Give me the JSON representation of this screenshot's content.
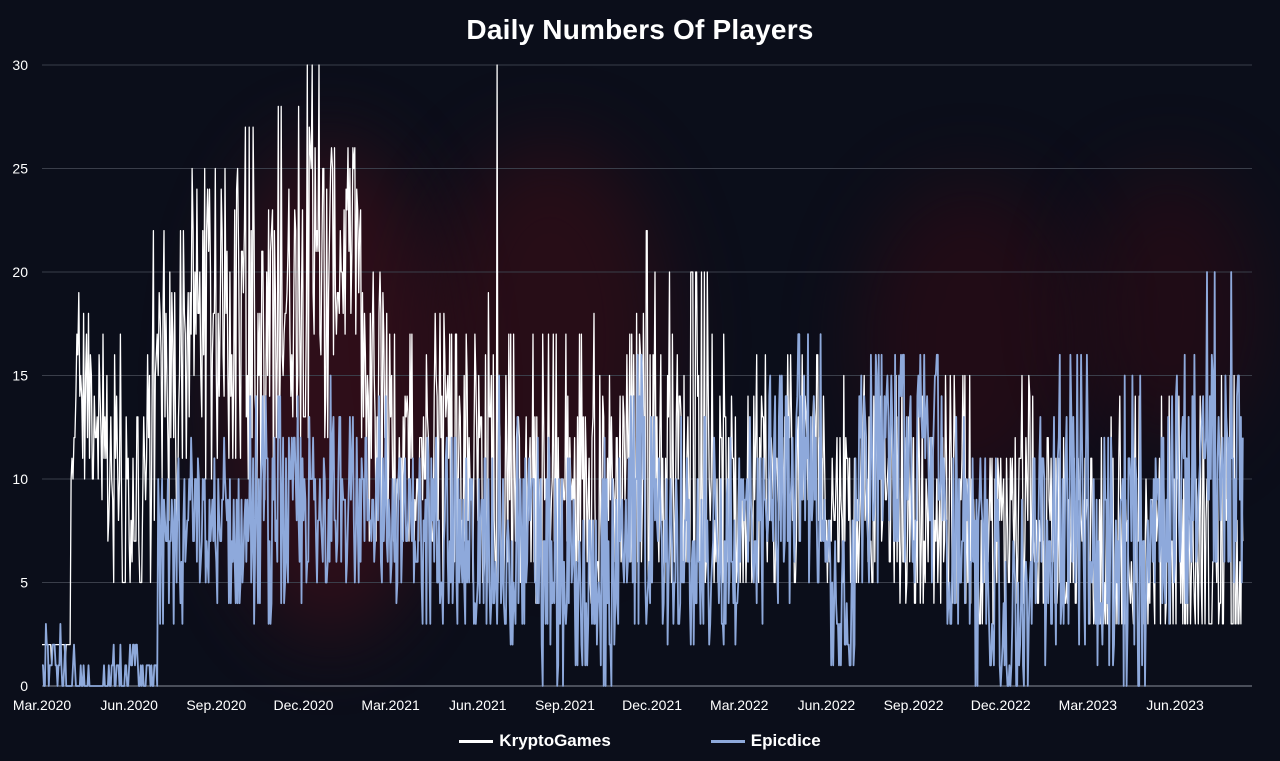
{
  "colors": {
    "background": "#0b0e1a",
    "gridline": "#3a3e4a",
    "text": "#ffffff",
    "series_kryptogames": "#ffffff",
    "series_epicdice": "#8ea9db"
  },
  "chart_data": {
    "type": "line",
    "title": "Daily Numbers Of Players",
    "xlabel": "",
    "ylabel": "",
    "ylim": [
      0,
      30
    ],
    "yticks": [
      0,
      5,
      10,
      15,
      20,
      25,
      30
    ],
    "xticks": [
      "Mar.2020",
      "Jun.2020",
      "Sep.2020",
      "Dec.2020",
      "Mar.2021",
      "Jun.2021",
      "Sep.2021",
      "Dec.2021",
      "Mar.2022",
      "Jun.2022",
      "Sep.2022",
      "Dec.2022",
      "Mar.2023",
      "Jun.2023"
    ],
    "x_unit": "monthly ticks (Mar.2020 – Aug.2023)",
    "grid": true,
    "legend_position": "bottom",
    "series": [
      {
        "name": "KryptoGames",
        "color": "#ffffff",
        "x": [
          "2020-03",
          "2020-04",
          "2020-05",
          "2020-06",
          "2020-07",
          "2020-08",
          "2020-09",
          "2020-10",
          "2020-11",
          "2020-12",
          "2021-01",
          "2021-02",
          "2021-03",
          "2021-04",
          "2021-05",
          "2021-06",
          "2021-07",
          "2021-08",
          "2021-09",
          "2021-10",
          "2021-11",
          "2021-12",
          "2022-01",
          "2022-02",
          "2022-03",
          "2022-04",
          "2022-05",
          "2022-06",
          "2022-07",
          "2022-08",
          "2022-09",
          "2022-10",
          "2022-11",
          "2022-12",
          "2023-01",
          "2023-02",
          "2023-03",
          "2023-04",
          "2023-05",
          "2023-06",
          "2023-07",
          "2023-08"
        ],
        "values": [
          2,
          14,
          11,
          10,
          15,
          18,
          19,
          16,
          19,
          20,
          21,
          14,
          11,
          12,
          11,
          10,
          9,
          8,
          9,
          10,
          12,
          11,
          10,
          9,
          10,
          9,
          10,
          9,
          10,
          9,
          8,
          8,
          7,
          8,
          8,
          8,
          8,
          7,
          7,
          6,
          6,
          6
        ],
        "min": [
          1,
          8,
          5,
          5,
          8,
          10,
          11,
          9,
          12,
          12,
          13,
          7,
          6,
          5,
          5,
          5,
          5,
          4,
          4,
          5,
          5,
          5,
          5,
          5,
          5,
          5,
          5,
          5,
          5,
          4,
          4,
          4,
          3,
          4,
          4,
          4,
          3,
          3,
          3,
          3,
          3,
          3
        ],
        "max": [
          2,
          19,
          17,
          22,
          22,
          25,
          25,
          27,
          28,
          30,
          26,
          20,
          17,
          18,
          17,
          30,
          17,
          17,
          17,
          18,
          22,
          20,
          20,
          17,
          16,
          16,
          16,
          15,
          15,
          15,
          14,
          15,
          14,
          15,
          14,
          15,
          17,
          14,
          14,
          14,
          15,
          15
        ]
      },
      {
        "name": "Epicdice",
        "color": "#8ea9db",
        "x": [
          "2020-03",
          "2020-04",
          "2020-05",
          "2020-06",
          "2020-07",
          "2020-08",
          "2020-09",
          "2020-10",
          "2020-11",
          "2020-12",
          "2021-01",
          "2021-02",
          "2021-03",
          "2021-04",
          "2021-05",
          "2021-06",
          "2021-07",
          "2021-08",
          "2021-09",
          "2021-10",
          "2021-11",
          "2021-12",
          "2022-01",
          "2022-02",
          "2022-03",
          "2022-04",
          "2022-05",
          "2022-06",
          "2022-07",
          "2022-08",
          "2022-09",
          "2022-10",
          "2022-11",
          "2022-12",
          "2023-01",
          "2023-02",
          "2023-03",
          "2023-04",
          "2023-05",
          "2023-06",
          "2023-07",
          "2023-08"
        ],
        "values": [
          1,
          0,
          0,
          1,
          7,
          8,
          7,
          7,
          8,
          9,
          9,
          9,
          8,
          8,
          7,
          7,
          7,
          6,
          5,
          6,
          9,
          7,
          7,
          6,
          8,
          10,
          10,
          5,
          11,
          11,
          11,
          7,
          5,
          3,
          7,
          8,
          6,
          6,
          9,
          10,
          11,
          10
        ],
        "min": [
          0,
          0,
          0,
          0,
          3,
          5,
          4,
          3,
          4,
          5,
          5,
          5,
          4,
          3,
          3,
          3,
          2,
          0,
          1,
          0,
          3,
          2,
          2,
          2,
          3,
          4,
          5,
          1,
          5,
          6,
          5,
          2,
          0,
          0,
          1,
          2,
          1,
          0,
          3,
          4,
          6,
          3
        ],
        "max": [
          3,
          2,
          2,
          2,
          11,
          12,
          12,
          14,
          14,
          15,
          13,
          14,
          13,
          12,
          12,
          15,
          13,
          12,
          11,
          12,
          16,
          13,
          13,
          12,
          13,
          15,
          17,
          12,
          16,
          16,
          16,
          13,
          11,
          9,
          13,
          16,
          12,
          15,
          16,
          16,
          20,
          16
        ]
      }
    ]
  }
}
